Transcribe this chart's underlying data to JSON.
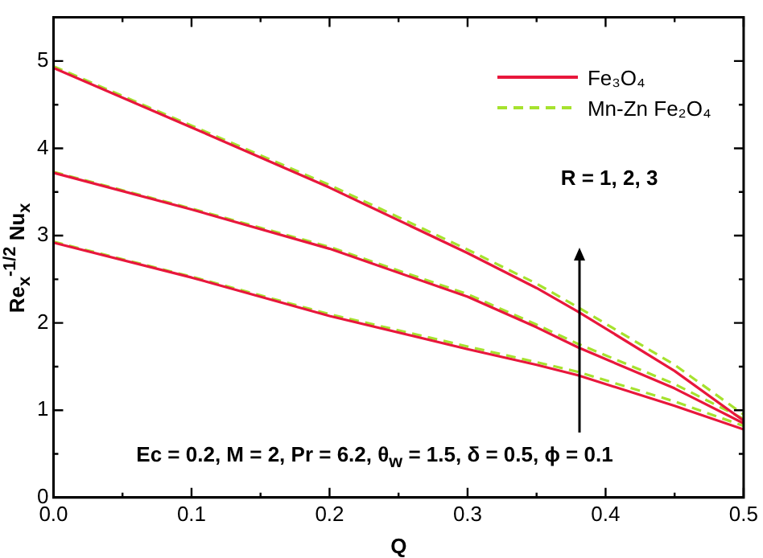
{
  "chart_data": {
    "type": "line",
    "xlabel": "Q",
    "ylabel": "Re$_{x}$$^{-1/2}$ Nu$_{x}$",
    "x": [
      0,
      0.1,
      0.2,
      0.3,
      0.35,
      0.38,
      0.45,
      0.5
    ],
    "series": [
      {
        "name": "Fe₃O₄",
        "color": "#e8173c",
        "line_style": "solid",
        "values": [
          4.92,
          4.24,
          3.55,
          2.8,
          2.4,
          2.13,
          1.45,
          0.88
        ]
      },
      {
        "name": "Mn-Zn Fe₂O₄",
        "color": "#a6e22e",
        "line_style": "dashed",
        "values": [
          4.94,
          4.26,
          3.58,
          2.84,
          2.45,
          2.18,
          1.52,
          0.95
        ]
      },
      {
        "color": "#e8173c",
        "line_style": "solid",
        "values": [
          3.72,
          3.3,
          2.85,
          2.3,
          1.95,
          1.72,
          1.25,
          0.85
        ]
      },
      {
        "color": "#a6e22e",
        "line_style": "dashed",
        "values": [
          3.73,
          3.31,
          2.87,
          2.33,
          1.98,
          1.76,
          1.3,
          0.9
        ]
      },
      {
        "color": "#e8173c",
        "line_style": "solid",
        "values": [
          2.92,
          2.52,
          2.08,
          1.7,
          1.52,
          1.4,
          1.05,
          0.78
        ]
      },
      {
        "color": "#a6e22e",
        "line_style": "dashed",
        "values": [
          2.93,
          2.53,
          2.1,
          1.73,
          1.55,
          1.44,
          1.1,
          0.82
        ]
      }
    ],
    "xlim": [
      0,
      0.5
    ],
    "xticks": [
      {
        "value": 0,
        "label": "0.0"
      },
      {
        "value": 0.05,
        "label": null
      },
      {
        "value": 0.1,
        "label": "0.1"
      },
      {
        "value": 0.15,
        "label": null
      },
      {
        "value": 0.2,
        "label": "0.2"
      },
      {
        "value": 0.25,
        "label": null
      },
      {
        "value": 0.3,
        "label": "0.3"
      },
      {
        "value": 0.35,
        "label": null
      },
      {
        "value": 0.4,
        "label": "0.4"
      },
      {
        "value": 0.45,
        "label": null
      },
      {
        "value": 0.5,
        "label": "0.5"
      }
    ],
    "ylim": [
      0,
      5.5
    ],
    "yticks": [
      0,
      {
        "value": 0.5,
        "label": null
      },
      1,
      {
        "value": 1.5,
        "label": null
      },
      2,
      {
        "value": 2.5,
        "label": null
      },
      3,
      {
        "value": 3.5,
        "label": null
      },
      4,
      {
        "value": 4.5,
        "label": null
      },
      5
    ],
    "annotations": [
      "R = 1, 2, 3",
      "Ec = 0.2, M = 2, Pr = 6.2, θ$_{w}$ = 1.5, δ = 0.5, ϕ = 0.1"
    ],
    "grid": false,
    "legend": "top right",
    "marker": "none"
  }
}
